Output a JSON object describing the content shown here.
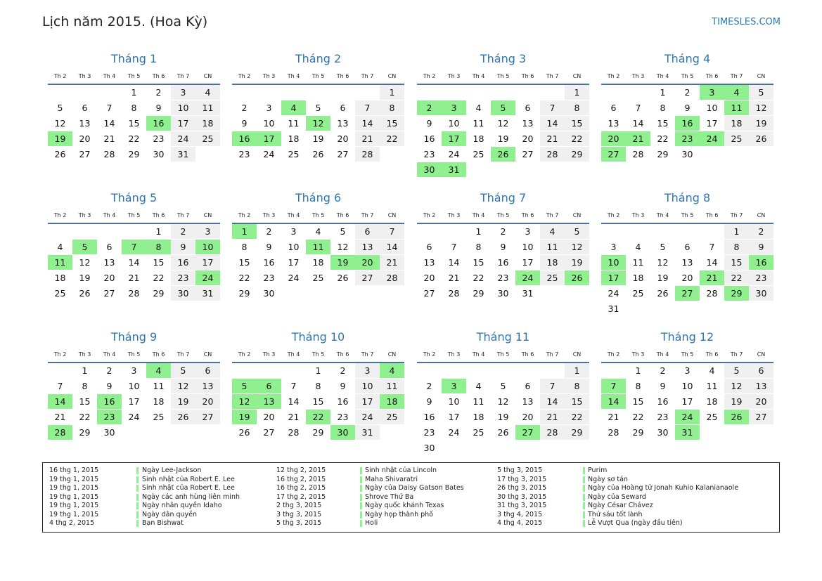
{
  "title": "Lịch năm 2015. (Hoa Kỳ)",
  "site": "TIMESLES.COM",
  "weekdays": [
    "Th 2",
    "Th 3",
    "Th 4",
    "Th 5",
    "Th 6",
    "Th 7",
    "CN"
  ],
  "months": [
    {
      "name": "Tháng 1",
      "weeks": [
        [
          null,
          null,
          null,
          1,
          2,
          3,
          4
        ],
        [
          5,
          6,
          7,
          8,
          9,
          10,
          11
        ],
        [
          12,
          13,
          14,
          15,
          16,
          17,
          18
        ],
        [
          19,
          20,
          21,
          22,
          23,
          24,
          25
        ],
        [
          26,
          27,
          28,
          29,
          30,
          31
        ]
      ],
      "highlight": [
        16,
        19
      ]
    },
    {
      "name": "Tháng 2",
      "weeks": [
        [
          null,
          null,
          null,
          null,
          null,
          null,
          1
        ],
        [
          2,
          3,
          4,
          5,
          6,
          7,
          8
        ],
        [
          9,
          10,
          11,
          12,
          13,
          14,
          15
        ],
        [
          16,
          17,
          18,
          19,
          20,
          21,
          22
        ],
        [
          23,
          24,
          25,
          26,
          27,
          28
        ]
      ],
      "highlight": [
        4,
        12,
        16,
        17
      ]
    },
    {
      "name": "Tháng 3",
      "weeks": [
        [
          null,
          null,
          null,
          null,
          null,
          null,
          1
        ],
        [
          2,
          3,
          4,
          5,
          6,
          7,
          8
        ],
        [
          9,
          10,
          11,
          12,
          13,
          14,
          15
        ],
        [
          16,
          17,
          18,
          19,
          20,
          21,
          22
        ],
        [
          23,
          24,
          25,
          26,
          27,
          28,
          29
        ],
        [
          30,
          31
        ]
      ],
      "highlight": [
        2,
        3,
        5,
        17,
        26,
        30,
        31
      ]
    },
    {
      "name": "Tháng 4",
      "weeks": [
        [
          null,
          null,
          1,
          2,
          3,
          4,
          5
        ],
        [
          6,
          7,
          8,
          9,
          10,
          11,
          12
        ],
        [
          13,
          14,
          15,
          16,
          17,
          18,
          19
        ],
        [
          20,
          21,
          22,
          23,
          24,
          25,
          26
        ],
        [
          27,
          28,
          29,
          30
        ]
      ],
      "highlight": [
        3,
        4,
        11,
        16,
        20,
        21,
        23,
        24,
        27
      ]
    },
    {
      "name": "Tháng 5",
      "weeks": [
        [
          null,
          null,
          null,
          null,
          1,
          2,
          3
        ],
        [
          4,
          5,
          6,
          7,
          8,
          9,
          10
        ],
        [
          11,
          12,
          13,
          14,
          15,
          16,
          17
        ],
        [
          18,
          19,
          20,
          21,
          22,
          23,
          24
        ],
        [
          25,
          26,
          27,
          28,
          29,
          30,
          31
        ]
      ],
      "highlight": [
        5,
        7,
        8,
        10,
        11,
        24
      ]
    },
    {
      "name": "Tháng 6",
      "weeks": [
        [
          1,
          2,
          3,
          4,
          5,
          6,
          7
        ],
        [
          8,
          9,
          10,
          11,
          12,
          13,
          14
        ],
        [
          15,
          16,
          17,
          18,
          19,
          20,
          21
        ],
        [
          22,
          23,
          24,
          25,
          26,
          27,
          28
        ],
        [
          29,
          30
        ]
      ],
      "highlight": [
        1,
        11,
        19,
        20
      ]
    },
    {
      "name": "Tháng 7",
      "weeks": [
        [
          null,
          null,
          1,
          2,
          3,
          4,
          5
        ],
        [
          6,
          7,
          8,
          9,
          10,
          11,
          12
        ],
        [
          13,
          14,
          15,
          16,
          17,
          18,
          19
        ],
        [
          20,
          21,
          22,
          23,
          24,
          25,
          26
        ],
        [
          27,
          28,
          29,
          30,
          31
        ]
      ],
      "highlight": [
        24,
        26
      ]
    },
    {
      "name": "Tháng 8",
      "weeks": [
        [
          null,
          null,
          null,
          null,
          null,
          1,
          2
        ],
        [
          3,
          4,
          5,
          6,
          7,
          8,
          9
        ],
        [
          10,
          11,
          12,
          13,
          14,
          15,
          16
        ],
        [
          17,
          18,
          19,
          20,
          21,
          22,
          23
        ],
        [
          24,
          25,
          26,
          27,
          28,
          29,
          30
        ],
        [
          31
        ]
      ],
      "highlight": [
        10,
        16,
        17,
        21,
        27,
        29
      ]
    },
    {
      "name": "Tháng 9",
      "weeks": [
        [
          null,
          1,
          2,
          3,
          4,
          5,
          6
        ],
        [
          7,
          8,
          9,
          10,
          11,
          12,
          13
        ],
        [
          14,
          15,
          16,
          17,
          18,
          19,
          20
        ],
        [
          21,
          22,
          23,
          24,
          25,
          26,
          27
        ],
        [
          28,
          29,
          30
        ]
      ],
      "highlight": [
        4,
        14,
        16,
        23,
        28
      ]
    },
    {
      "name": "Tháng 10",
      "weeks": [
        [
          null,
          null,
          null,
          1,
          2,
          3,
          4
        ],
        [
          5,
          6,
          7,
          8,
          9,
          10,
          11
        ],
        [
          12,
          13,
          14,
          15,
          16,
          17,
          18
        ],
        [
          19,
          20,
          21,
          22,
          23,
          24,
          25
        ],
        [
          26,
          27,
          28,
          29,
          30,
          31
        ]
      ],
      "highlight": [
        4,
        5,
        6,
        12,
        13,
        18,
        19,
        22,
        30
      ]
    },
    {
      "name": "Tháng 11",
      "weeks": [
        [
          null,
          null,
          null,
          null,
          null,
          null,
          1
        ],
        [
          2,
          3,
          4,
          5,
          6,
          7,
          8
        ],
        [
          9,
          10,
          11,
          12,
          13,
          14,
          15
        ],
        [
          16,
          17,
          18,
          19,
          20,
          21,
          22
        ],
        [
          23,
          24,
          25,
          26,
          27,
          28,
          29
        ],
        [
          30
        ]
      ],
      "highlight": [
        3,
        27
      ]
    },
    {
      "name": "Tháng 12",
      "weeks": [
        [
          null,
          1,
          2,
          3,
          4,
          5,
          6
        ],
        [
          7,
          8,
          9,
          10,
          11,
          12,
          13
        ],
        [
          14,
          15,
          16,
          17,
          18,
          19,
          20
        ],
        [
          21,
          22,
          23,
          24,
          25,
          26,
          27
        ],
        [
          28,
          29,
          30,
          31
        ]
      ],
      "highlight": [
        7,
        14,
        24,
        26,
        31
      ]
    }
  ],
  "holidays": [
    {
      "date": "16 thg 1, 2015",
      "name": "Ngày Lee-Jackson"
    },
    {
      "date": "19 thg 1, 2015",
      "name": "Sinh nhật của Robert E. Lee"
    },
    {
      "date": "19 thg 1, 2015",
      "name": "Sinh nhật của Robert E. Lee"
    },
    {
      "date": "19 thg 1, 2015",
      "name": "Ngày các anh hùng liên minh"
    },
    {
      "date": "19 thg 1, 2015",
      "name": "Ngày nhân quyền Idaho"
    },
    {
      "date": "19 thg 1, 2015",
      "name": "Ngày dân quyền"
    },
    {
      "date": "4 thg 2, 2015",
      "name": "Bạn Bishwat"
    },
    {
      "date": "12 thg 2, 2015",
      "name": "Sinh nhật của Lincoln"
    },
    {
      "date": "16 thg 2, 2015",
      "name": "Maha Shivaratri"
    },
    {
      "date": "16 thg 2, 2015",
      "name": "Ngày của Daisy Gatson Bates"
    },
    {
      "date": "17 thg 2, 2015",
      "name": "Shrove Thứ Ba"
    },
    {
      "date": "2 thg 3, 2015",
      "name": "Ngày quốc khánh Texas"
    },
    {
      "date": "3 thg 3, 2015",
      "name": "Ngày họp thành phố"
    },
    {
      "date": "5 thg 3, 2015",
      "name": "Holi"
    },
    {
      "date": "5 thg 3, 2015",
      "name": "Purim"
    },
    {
      "date": "17 thg 3, 2015",
      "name": "Ngày sơ tán"
    },
    {
      "date": "26 thg 3, 2015",
      "name": "Ngày của Hoàng tử Jonah Kuhio Kalanianaole"
    },
    {
      "date": "30 thg 3, 2015",
      "name": "Ngày của Seward"
    },
    {
      "date": "31 thg 3, 2015",
      "name": "Ngày César Chávez"
    },
    {
      "date": "3 thg 4, 2015",
      "name": "Thứ sáu tốt lành"
    },
    {
      "date": "4 thg 4, 2015",
      "name": "Lễ Vượt Qua (ngày đầu tiên)"
    }
  ]
}
